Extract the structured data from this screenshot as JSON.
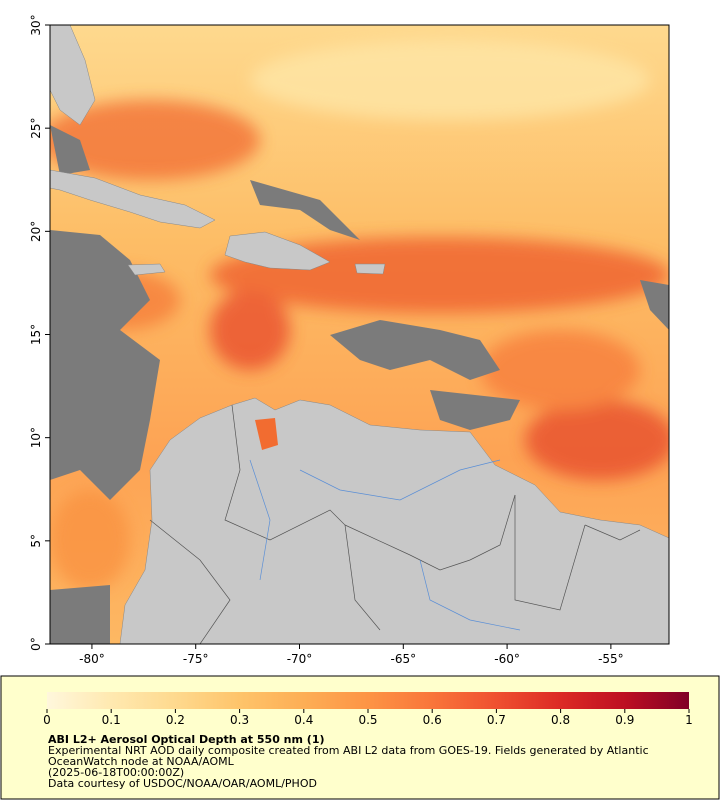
{
  "map": {
    "lonlim": [
      -82.02,
      -52.2
    ],
    "latlim": [
      0,
      30
    ],
    "lonticks": [
      {
        "value": -80,
        "label": "-80°"
      },
      {
        "value": -75,
        "label": "-75°"
      },
      {
        "value": -70,
        "label": "-70°"
      },
      {
        "value": -65,
        "label": "-65°"
      },
      {
        "value": -60,
        "label": "-60°"
      },
      {
        "value": -55,
        "label": "-55°"
      }
    ],
    "latticks": [
      {
        "value": 0,
        "label": "0°"
      },
      {
        "value": 5,
        "label": "5°"
      },
      {
        "value": 10,
        "label": "10°"
      },
      {
        "value": 15,
        "label": "15°"
      },
      {
        "value": 20,
        "label": "20°"
      },
      {
        "value": 25,
        "label": "25°"
      },
      {
        "value": 30,
        "label": "30°"
      }
    ]
  },
  "colorbar": {
    "range": [
      0,
      1
    ],
    "ticks": [
      0,
      0.1,
      0.2,
      0.3,
      0.4,
      0.5,
      0.6,
      0.7,
      0.8,
      0.9,
      1
    ],
    "colors": [
      "#fff7dc",
      "#ffe9b0",
      "#fed98e",
      "#fec46a",
      "#fdae55",
      "#fd9445",
      "#f9753a",
      "#ef5030",
      "#dc2a25",
      "#bd0f22",
      "#800026"
    ]
  },
  "title": "ABI L2+ Aerosol Optical Depth at 550 nm (1)",
  "description": [
    "Experimental NRT AOD daily composite created from ABI L2 data from GOES-19. Fields generated by Atlantic",
    "OceanWatch node at NOAA/AOML",
    "(2025-06-18T00:00:00Z)",
    "Data courtesy of USDOC/NOAA/OAR/AOML/PHOD"
  ]
}
